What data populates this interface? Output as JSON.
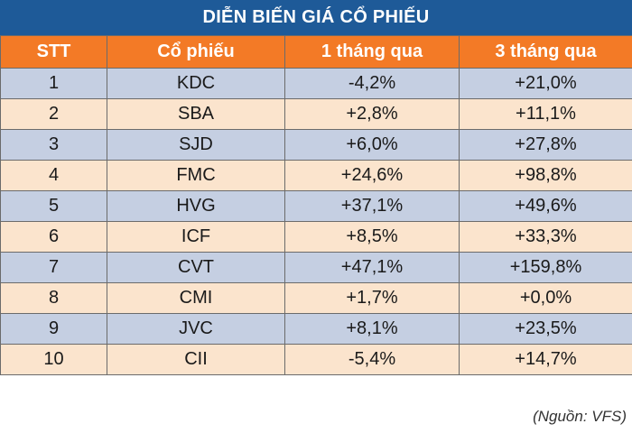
{
  "title": "DIỄN BIẾN GIÁ CỔ PHIẾU",
  "headers": [
    "STT",
    "Cổ phiếu",
    "1 tháng qua",
    "3 tháng qua"
  ],
  "rows": [
    [
      "1",
      "KDC",
      "-4,2%",
      "+21,0%"
    ],
    [
      "2",
      "SBA",
      "+2,8%",
      "+11,1%"
    ],
    [
      "3",
      "SJD",
      "+6,0%",
      "+27,8%"
    ],
    [
      "4",
      "FMC",
      "+24,6%",
      "+98,8%"
    ],
    [
      "5",
      "HVG",
      "+37,1%",
      "+49,6%"
    ],
    [
      "6",
      "ICF",
      "+8,5%",
      "+33,3%"
    ],
    [
      "7",
      "CVT",
      "+47,1%",
      "+159,8%"
    ],
    [
      "8",
      "CMI",
      "+1,7%",
      "+0,0%"
    ],
    [
      "9",
      "JVC",
      "+8,1%",
      "+23,5%"
    ],
    [
      "10",
      "CII",
      "-5,4%",
      "+14,7%"
    ]
  ],
  "source": "(Nguồn: VFS)",
  "colors": {
    "title_bg": "#1e5a98",
    "header_bg": "#f37a26",
    "row_odd_bg": "#c5cfe2",
    "row_even_bg": "#fbe4cd"
  }
}
